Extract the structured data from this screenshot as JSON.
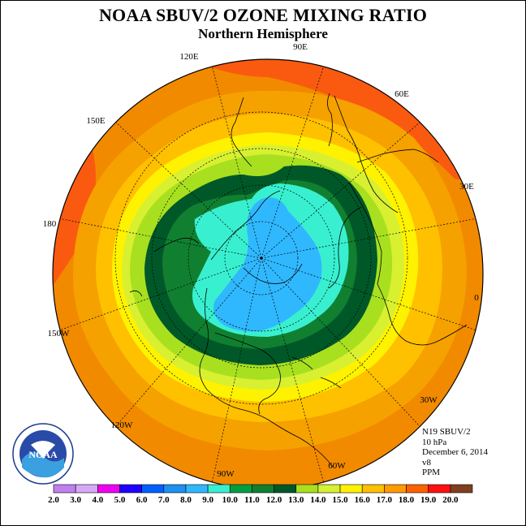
{
  "title": "NOAA SBUV/2 OZONE MIXING RATIO",
  "subtitle": "Northern Hemisphere",
  "longitude_labels": {
    "e90": "90E",
    "e120": "120E",
    "e60": "60E",
    "e150": "150E",
    "e30": "30E",
    "l180": "180",
    "l0": "0",
    "w150": "150W",
    "w30": "30W",
    "w120": "120W",
    "w60": "60W",
    "w90": "90W"
  },
  "info": {
    "instrument": "N19 SBUV/2",
    "level": "10 hPa",
    "date": "December 6, 2014",
    "version": "v8",
    "units": "PPM"
  },
  "logo": {
    "text": "NOAA",
    "icon": "noaa-logo"
  },
  "colorbar": {
    "labels": [
      "2.0",
      "3.0",
      "4.0",
      "5.0",
      "6.0",
      "7.0",
      "8.0",
      "9.0",
      "10.0",
      "11.0",
      "12.0",
      "13.0",
      "14.0",
      "15.0",
      "16.0",
      "17.0",
      "18.0",
      "19.0",
      "20.0"
    ],
    "colors": [
      "#c080f0",
      "#d8a8f8",
      "#f000f0",
      "#2000ff",
      "#0060ff",
      "#1e90f0",
      "#30b8ff",
      "#38f0d0",
      "#00a040",
      "#108030",
      "#005828",
      "#a8e020",
      "#d8f030",
      "#fff200",
      "#ffc000",
      "#ff9a00",
      "#ff6000",
      "#ff1010",
      "#804020"
    ]
  },
  "map_colors": {
    "outer": "#f28a00",
    "orange_red": "#fa5a10",
    "orange": "#f5a100",
    "light_orange": "#ffc000",
    "yellow": "#fff200",
    "light_yellow": "#d8f030",
    "yellow_green": "#a8e020",
    "dark_green": "#005828",
    "green": "#108030",
    "aqua": "#38f0d0",
    "light_blue": "#30b8ff"
  }
}
